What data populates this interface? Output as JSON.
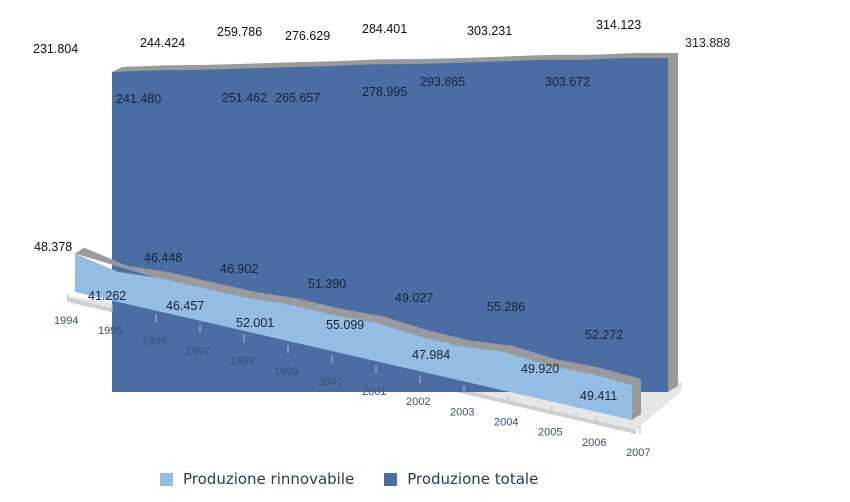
{
  "chart_data": {
    "type": "area",
    "title": "",
    "xlabel": "",
    "ylabel": "",
    "categories": [
      "1994",
      "1995",
      "1996",
      "1997",
      "1998",
      "1999",
      "2000",
      "2001",
      "2002",
      "2003",
      "2004",
      "2005",
      "2006",
      "2007"
    ],
    "series": [
      {
        "name": "Produzione totale",
        "color": "#4a6ea3",
        "values": [
          231.804,
          241.48,
          244.424,
          251.462,
          259.786,
          265.657,
          276.629,
          278.995,
          284.401,
          293.865,
          303.231,
          303.672,
          314.123,
          313.888
        ],
        "labels": [
          "231.804",
          "241.480",
          "244.424",
          "251.462",
          "259.786",
          "265.657",
          "276.629",
          "278.995",
          "284.401",
          "293.865",
          "303.231",
          "303.672",
          "314.123",
          "313.888"
        ]
      },
      {
        "name": "Produzione rinnovabile",
        "color": "#93bde3",
        "values": [
          48.378,
          41.262,
          46.448,
          46.457,
          46.902,
          52.001,
          51.39,
          55.099,
          49.027,
          47.984,
          55.286,
          49.92,
          52.272,
          49.411
        ],
        "labels": [
          "48.378",
          "41.262",
          "46.448",
          "46.457",
          "46.902",
          "52.001",
          "51.390",
          "55.099",
          "49.027",
          "47.984",
          "55.286",
          "49.920",
          "52.272",
          "49.411"
        ]
      }
    ],
    "style": "3d-area",
    "grid": false,
    "legend_position": "bottom"
  },
  "legend": {
    "items": [
      {
        "label": "Produzione rinnovabile",
        "color": "#93bde3"
      },
      {
        "label": "Produzione totale",
        "color": "#4a6ea3"
      }
    ]
  }
}
